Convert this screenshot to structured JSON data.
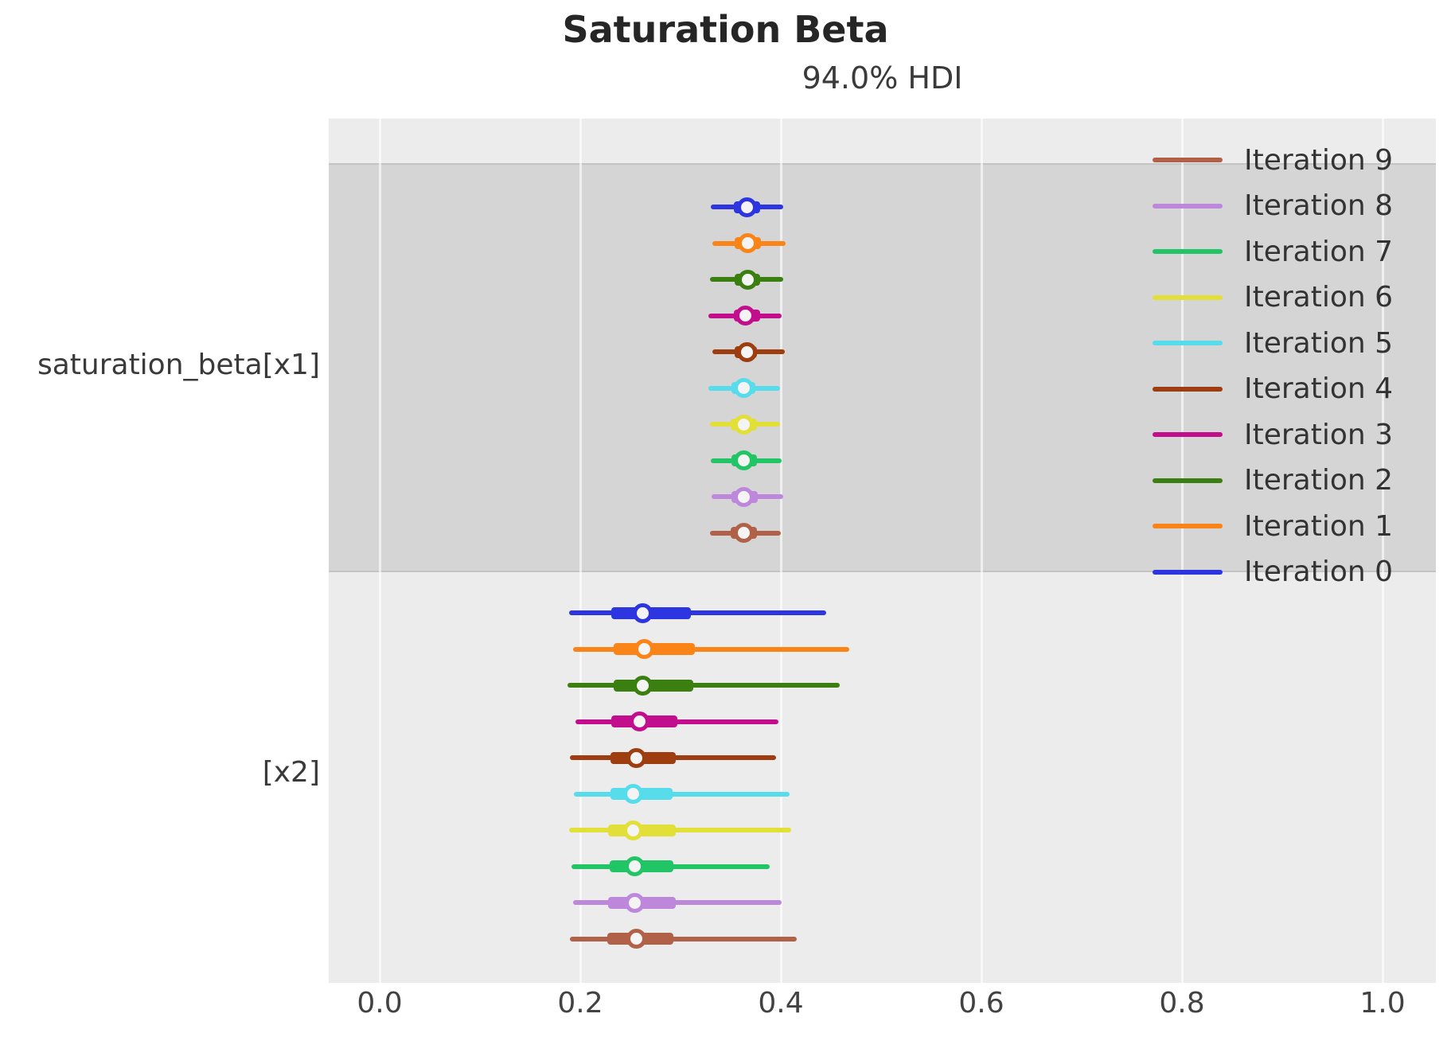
{
  "chart_data": {
    "type": "forest",
    "title": "Saturation Beta",
    "subtitle": "94.0% HDI",
    "hdi_probability": "94.0%",
    "xlim": [
      -0.051,
      1.053
    ],
    "xticks": [
      0.0,
      0.2,
      0.4,
      0.6,
      0.8,
      1.0
    ],
    "xtick_labels": [
      "0.0",
      "0.2",
      "0.4",
      "0.6",
      "0.8",
      "1.0"
    ],
    "grid": "vertical-white-gridlines",
    "legend_position": "upper-right",
    "colors": {
      "figure_bg": "#ffffff",
      "plot_bg": "#ececec",
      "shaded_band": "#d5d5d5",
      "gridline": "#ffffff",
      "text": "#3a3a3a",
      "marker_fill": "#f4f4f4"
    },
    "legend": [
      {
        "label": "Iteration 9",
        "color": "#b26149"
      },
      {
        "label": "Iteration 8",
        "color": "#bd88dc"
      },
      {
        "label": "Iteration 7",
        "color": "#22c565"
      },
      {
        "label": "Iteration 6",
        "color": "#e2df39"
      },
      {
        "label": "Iteration 5",
        "color": "#57dcec"
      },
      {
        "label": "Iteration 4",
        "color": "#9d3d10"
      },
      {
        "label": "Iteration 3",
        "color": "#c20d8d"
      },
      {
        "label": "Iteration 2",
        "color": "#3b7f10"
      },
      {
        "label": "Iteration 1",
        "color": "#fb8418"
      },
      {
        "label": "Iteration 0",
        "color": "#2c35df"
      }
    ],
    "parameters": [
      {
        "name": "saturation_beta[x1]",
        "shaded": true,
        "rows": [
          {
            "iteration": "Iteration 0",
            "color": "#2c35df",
            "hdi_low": 0.33,
            "q_low": 0.353,
            "point": 0.366,
            "q_high": 0.379,
            "hdi_high": 0.402
          },
          {
            "iteration": "Iteration 1",
            "color": "#fb8418",
            "hdi_low": 0.332,
            "q_low": 0.354,
            "point": 0.367,
            "q_high": 0.38,
            "hdi_high": 0.405
          },
          {
            "iteration": "Iteration 2",
            "color": "#3b7f10",
            "hdi_low": 0.329,
            "q_low": 0.354,
            "point": 0.367,
            "q_high": 0.379,
            "hdi_high": 0.402
          },
          {
            "iteration": "Iteration 3",
            "color": "#c20d8d",
            "hdi_low": 0.328,
            "q_low": 0.353,
            "point": 0.365,
            "q_high": 0.379,
            "hdi_high": 0.401
          },
          {
            "iteration": "Iteration 4",
            "color": "#9d3d10",
            "hdi_low": 0.332,
            "q_low": 0.354,
            "point": 0.366,
            "q_high": 0.376,
            "hdi_high": 0.404
          },
          {
            "iteration": "Iteration 5",
            "color": "#57dcec",
            "hdi_low": 0.328,
            "q_low": 0.351,
            "point": 0.363,
            "q_high": 0.375,
            "hdi_high": 0.399
          },
          {
            "iteration": "Iteration 6",
            "color": "#e2df39",
            "hdi_low": 0.329,
            "q_low": 0.35,
            "point": 0.363,
            "q_high": 0.376,
            "hdi_high": 0.399
          },
          {
            "iteration": "Iteration 7",
            "color": "#22c565",
            "hdi_low": 0.33,
            "q_low": 0.351,
            "point": 0.363,
            "q_high": 0.376,
            "hdi_high": 0.401
          },
          {
            "iteration": "Iteration 8",
            "color": "#bd88dc",
            "hdi_low": 0.331,
            "q_low": 0.351,
            "point": 0.363,
            "q_high": 0.377,
            "hdi_high": 0.402
          },
          {
            "iteration": "Iteration 9",
            "color": "#b26149",
            "hdi_low": 0.329,
            "q_low": 0.35,
            "point": 0.363,
            "q_high": 0.376,
            "hdi_high": 0.4
          }
        ]
      },
      {
        "name": "[x2]",
        "shaded": false,
        "rows": [
          {
            "iteration": "Iteration 0",
            "color": "#2c35df",
            "hdi_low": 0.189,
            "q_low": 0.231,
            "point": 0.262,
            "q_high": 0.31,
            "hdi_high": 0.445
          },
          {
            "iteration": "Iteration 1",
            "color": "#fb8418",
            "hdi_low": 0.193,
            "q_low": 0.233,
            "point": 0.264,
            "q_high": 0.314,
            "hdi_high": 0.468
          },
          {
            "iteration": "Iteration 2",
            "color": "#3b7f10",
            "hdi_low": 0.187,
            "q_low": 0.233,
            "point": 0.262,
            "q_high": 0.313,
            "hdi_high": 0.459
          },
          {
            "iteration": "Iteration 3",
            "color": "#c20d8d",
            "hdi_low": 0.195,
            "q_low": 0.231,
            "point": 0.259,
            "q_high": 0.297,
            "hdi_high": 0.398
          },
          {
            "iteration": "Iteration 4",
            "color": "#9d3d10",
            "hdi_low": 0.19,
            "q_low": 0.23,
            "point": 0.256,
            "q_high": 0.295,
            "hdi_high": 0.395
          },
          {
            "iteration": "Iteration 5",
            "color": "#57dcec",
            "hdi_low": 0.194,
            "q_low": 0.23,
            "point": 0.253,
            "q_high": 0.292,
            "hdi_high": 0.409
          },
          {
            "iteration": "Iteration 6",
            "color": "#e2df39",
            "hdi_low": 0.189,
            "q_low": 0.228,
            "point": 0.253,
            "q_high": 0.295,
            "hdi_high": 0.41
          },
          {
            "iteration": "Iteration 7",
            "color": "#22c565",
            "hdi_low": 0.191,
            "q_low": 0.229,
            "point": 0.254,
            "q_high": 0.293,
            "hdi_high": 0.389
          },
          {
            "iteration": "Iteration 8",
            "color": "#bd88dc",
            "hdi_low": 0.193,
            "q_low": 0.228,
            "point": 0.254,
            "q_high": 0.295,
            "hdi_high": 0.401
          },
          {
            "iteration": "Iteration 9",
            "color": "#b26149",
            "hdi_low": 0.19,
            "q_low": 0.227,
            "point": 0.256,
            "q_high": 0.293,
            "hdi_high": 0.416
          }
        ]
      }
    ]
  }
}
